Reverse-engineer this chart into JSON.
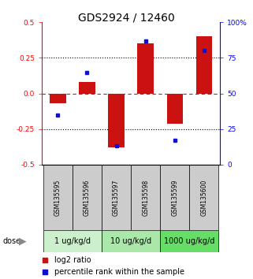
{
  "title": "GDS2924 / 12460",
  "samples": [
    "GSM135595",
    "GSM135596",
    "GSM135597",
    "GSM135598",
    "GSM135599",
    "GSM135600"
  ],
  "log2_ratios": [
    -0.07,
    0.08,
    -0.38,
    0.35,
    -0.21,
    0.4
  ],
  "percentile_ranks": [
    35,
    65,
    13,
    87,
    17,
    80
  ],
  "dose_groups": [
    {
      "label": "1 ug/kg/d",
      "samples": [
        0,
        1
      ],
      "color": "#ccf0cc"
    },
    {
      "label": "10 ug/kg/d",
      "samples": [
        2,
        3
      ],
      "color": "#aae8aa"
    },
    {
      "label": "1000 ug/kg/d",
      "samples": [
        4,
        5
      ],
      "color": "#66dd66"
    }
  ],
  "bar_color": "#cc1111",
  "dot_color": "#1111cc",
  "ylim_left": [
    -0.5,
    0.5
  ],
  "ylim_right": [
    0,
    100
  ],
  "yticks_left": [
    -0.5,
    -0.25,
    0.0,
    0.25,
    0.5
  ],
  "yticks_right": [
    0,
    25,
    50,
    75,
    100
  ],
  "hlines": [
    -0.25,
    0.0,
    0.25
  ],
  "hline_styles": [
    "dotted",
    "dashed_red",
    "dotted"
  ],
  "sample_box_color": "#cccccc",
  "title_fontsize": 10,
  "tick_fontsize": 6.5,
  "sample_fontsize": 5.5,
  "dose_fontsize": 7,
  "legend_fontsize": 7
}
